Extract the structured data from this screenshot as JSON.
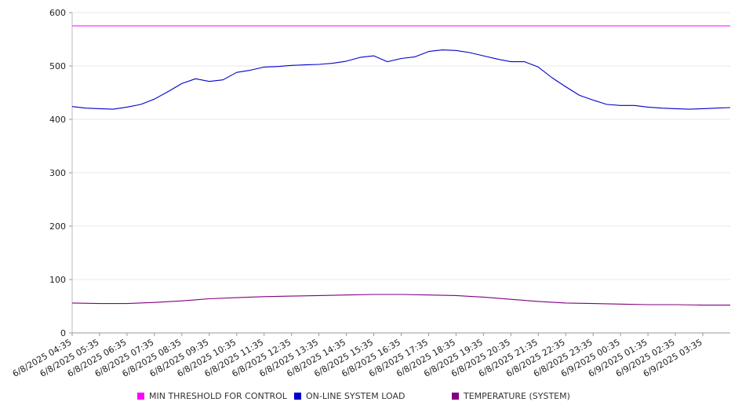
{
  "chart_data": {
    "type": "line",
    "title": "",
    "xlabel": "",
    "ylabel": "",
    "ylim": [
      0,
      600
    ],
    "yticks": [
      0,
      100,
      200,
      300,
      400,
      500,
      600
    ],
    "grid": true,
    "legend_position": "bottom",
    "x_tick_labels": [
      "6/8/2025 04:35",
      "6/8/2025 05:35",
      "6/8/2025 06:35",
      "6/8/2025 07:35",
      "6/8/2025 08:35",
      "6/8/2025 09:35",
      "6/8/2025 10:35",
      "6/8/2025 11:35",
      "6/8/2025 12:35",
      "6/8/2025 13:35",
      "6/8/2025 14:35",
      "6/8/2025 15:35",
      "6/8/2025 16:35",
      "6/8/2025 17:35",
      "6/8/2025 18:35",
      "6/8/2025 19:35",
      "6/8/2025 20:35",
      "6/8/2025 21:35",
      "6/8/2025 22:35",
      "6/8/2025 23:35",
      "6/9/2025 00:35",
      "6/9/2025 01:35",
      "6/9/2025 02:35",
      "6/9/2025 03:35"
    ],
    "series": [
      {
        "name": "MIN THRESHOLD FOR CONTROL",
        "color": "#ff00ff",
        "x": [
          "6/8/2025 04:35",
          "6/9/2025 04:35"
        ],
        "values": [
          575,
          575
        ]
      },
      {
        "name": "ON-LINE SYSTEM LOAD",
        "color": "#0000cc",
        "x": [
          "6/8/2025 04:35",
          "6/8/2025 05:05",
          "6/8/2025 05:35",
          "6/8/2025 06:05",
          "6/8/2025 06:35",
          "6/8/2025 07:05",
          "6/8/2025 07:35",
          "6/8/2025 08:05",
          "6/8/2025 08:35",
          "6/8/2025 09:05",
          "6/8/2025 09:35",
          "6/8/2025 10:05",
          "6/8/2025 10:35",
          "6/8/2025 11:05",
          "6/8/2025 11:35",
          "6/8/2025 12:05",
          "6/8/2025 12:35",
          "6/8/2025 13:05",
          "6/8/2025 13:35",
          "6/8/2025 14:05",
          "6/8/2025 14:35",
          "6/8/2025 15:05",
          "6/8/2025 15:35",
          "6/8/2025 16:05",
          "6/8/2025 16:35",
          "6/8/2025 17:05",
          "6/8/2025 17:35",
          "6/8/2025 18:05",
          "6/8/2025 18:35",
          "6/8/2025 19:05",
          "6/8/2025 19:35",
          "6/8/2025 20:05",
          "6/8/2025 20:35",
          "6/8/2025 21:05",
          "6/8/2025 21:35",
          "6/8/2025 22:05",
          "6/8/2025 22:35",
          "6/8/2025 23:05",
          "6/8/2025 23:35",
          "6/9/2025 00:05",
          "6/9/2025 00:35",
          "6/9/2025 01:05",
          "6/9/2025 01:35",
          "6/9/2025 02:05",
          "6/9/2025 02:35",
          "6/9/2025 03:05",
          "6/9/2025 03:35",
          "6/9/2025 04:05",
          "6/9/2025 04:35"
        ],
        "values": [
          424,
          421,
          420,
          419,
          423,
          428,
          438,
          452,
          467,
          476,
          471,
          474,
          488,
          492,
          498,
          499,
          501,
          502,
          503,
          505,
          509,
          516,
          519,
          508,
          514,
          517,
          527,
          530,
          529,
          525,
          519,
          513,
          508,
          508,
          498,
          478,
          461,
          445,
          436,
          428,
          426,
          426,
          423,
          421,
          420,
          419,
          420,
          421,
          422
        ]
      },
      {
        "name": "TEMPERATURE (SYSTEM)",
        "color": "#800080",
        "x": [
          "6/8/2025 04:35",
          "6/8/2025 05:35",
          "6/8/2025 06:35",
          "6/8/2025 07:35",
          "6/8/2025 08:35",
          "6/8/2025 09:35",
          "6/8/2025 10:35",
          "6/8/2025 11:35",
          "6/8/2025 12:35",
          "6/8/2025 13:35",
          "6/8/2025 14:35",
          "6/8/2025 15:35",
          "6/8/2025 16:35",
          "6/8/2025 17:35",
          "6/8/2025 18:35",
          "6/8/2025 19:35",
          "6/8/2025 20:35",
          "6/8/2025 21:35",
          "6/8/2025 22:35",
          "6/8/2025 23:35",
          "6/9/2025 00:35",
          "6/9/2025 01:35",
          "6/9/2025 02:35",
          "6/9/2025 03:35",
          "6/9/2025 04:35"
        ],
        "values": [
          56,
          55,
          55,
          57,
          60,
          64,
          66,
          68,
          69,
          70,
          71,
          72,
          72,
          71,
          70,
          67,
          63,
          59,
          56,
          55,
          54,
          53,
          53,
          52,
          52
        ]
      }
    ]
  }
}
